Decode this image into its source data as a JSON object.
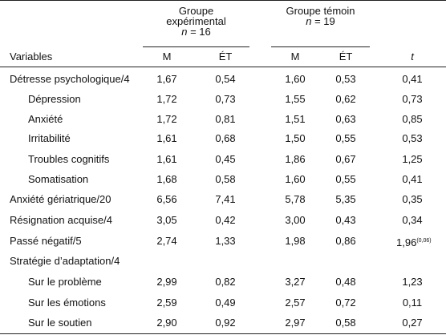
{
  "table": {
    "group_exp": {
      "line1": "Groupe",
      "line2": "expérimental",
      "n_label": "n",
      "n_value": " = 16"
    },
    "group_ctrl": {
      "line1": "Groupe témoin",
      "n_label": "n",
      "n_value": " = 19"
    },
    "headers": {
      "variables": "Variables",
      "m1": "M",
      "et1": "ÉT",
      "m2": "M",
      "et2": "ÉT",
      "t": "t"
    },
    "rows": [
      {
        "label": "Détresse psychologique/4",
        "m1": "1,67",
        "et1": "0,54",
        "m2": "1,60",
        "et2": "0,53",
        "t": "0,41",
        "sup": ""
      },
      {
        "label": "Dépression",
        "m1": "1,72",
        "et1": "0,73",
        "m2": "1,55",
        "et2": "0,62",
        "t": "0,73",
        "sup": ""
      },
      {
        "label": "Anxiété",
        "m1": "1,72",
        "et1": "0,81",
        "m2": "1,51",
        "et2": "0,63",
        "t": "0,85",
        "sup": ""
      },
      {
        "label": "Irritabilité",
        "m1": "1,61",
        "et1": "0,68",
        "m2": "1,50",
        "et2": "0,55",
        "t": "0,53",
        "sup": ""
      },
      {
        "label": "Troubles cognitifs",
        "m1": "1,61",
        "et1": "0,45",
        "m2": "1,86",
        "et2": "0,67",
        "t": "1,25",
        "sup": ""
      },
      {
        "label": "Somatisation",
        "m1": "1,68",
        "et1": "0,58",
        "m2": "1,60",
        "et2": "0,55",
        "t": "0,41",
        "sup": ""
      },
      {
        "label": "Anxiété gériatrique/20",
        "m1": "6,56",
        "et1": "7,41",
        "m2": "5,78",
        "et2": "5,35",
        "t": "0,35",
        "sup": ""
      },
      {
        "label": "Résignation acquise/4",
        "m1": "3,05",
        "et1": "0,42",
        "m2": "3,00",
        "et2": "0,43",
        "t": "0,34",
        "sup": ""
      },
      {
        "label": "Passé négatif/5",
        "m1": "2,74",
        "et1": "1,33",
        "m2": "1,98",
        "et2": "0,86",
        "t": "1,96",
        "sup": "(0,06)"
      },
      {
        "label": "Stratégie d’adaptation/4",
        "m1": "",
        "et1": "",
        "m2": "",
        "et2": "",
        "t": "",
        "sup": ""
      },
      {
        "label": "Sur le problème",
        "m1": "2,99",
        "et1": "0,82",
        "m2": "3,27",
        "et2": "0,48",
        "t": "1,23",
        "sup": ""
      },
      {
        "label": "Sur les émotions",
        "m1": "2,59",
        "et1": "0,49",
        "m2": "2,57",
        "et2": "0,72",
        "t": "0,11",
        "sup": ""
      },
      {
        "label": "Sur le soutien",
        "m1": "2,90",
        "et1": "0,92",
        "m2": "2,97",
        "et2": "0,58",
        "t": "0,27",
        "sup": ""
      }
    ]
  }
}
